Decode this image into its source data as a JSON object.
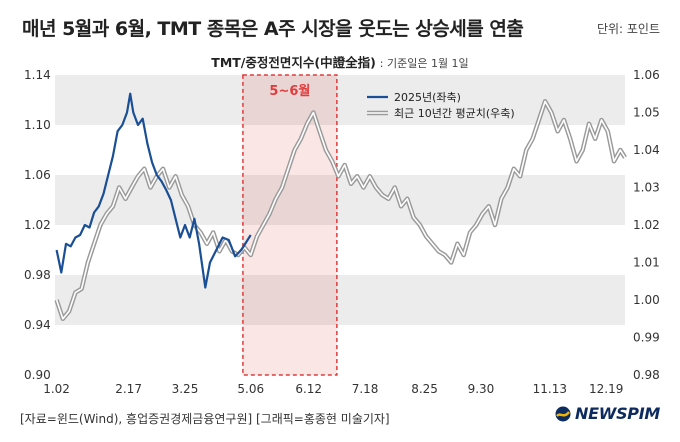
{
  "header": {
    "title": "매년 5월과 6월, TMT 종목은 A주 시장을 웃도는 상승세를 연출",
    "unit": "단위: 포인트"
  },
  "footer": {
    "source": "[자료=윈드(Wind), 흥업증권경제금융연구원] [그래픽=홍종현 미술기자]",
    "logo": "NEWSPIM"
  },
  "chart_data": {
    "type": "line",
    "title": "TMT/중정전면지수(中證全指)",
    "subtitle": ": 기준일은 1월 1일",
    "highlight": {
      "label": "5~6월",
      "from": "5.01",
      "to": "6.30"
    },
    "x_ticks": [
      "1.02",
      "2.17",
      "3.25",
      "5.06",
      "6.12",
      "7.18",
      "8.25",
      "9.30",
      "11.13",
      "12.19"
    ],
    "y_left": {
      "ticks": [
        "0.90",
        "0.94",
        "0.98",
        "1.02",
        "1.06",
        "1.10",
        "1.14"
      ],
      "range": [
        0.9,
        1.14
      ]
    },
    "y_right": {
      "ticks": [
        "0.98",
        "0.99",
        "1.00",
        "1.01",
        "1.02",
        "1.03",
        "1.04",
        "1.05",
        "1.06"
      ],
      "range": [
        0.98,
        1.06
      ]
    },
    "colors": {
      "series_2025": "#1a4f96",
      "series_10y": "#9a9a9a",
      "highlight": "#e23b3b",
      "band": "#ececec"
    },
    "series": [
      {
        "name": "2025년(좌축)",
        "axis": "left",
        "points": [
          [
            "1.02",
            1.0
          ],
          [
            "1.05",
            0.982
          ],
          [
            "1.08",
            1.005
          ],
          [
            "1.11",
            1.003
          ],
          [
            "1.14",
            1.01
          ],
          [
            "1.17",
            1.012
          ],
          [
            "1.20",
            1.02
          ],
          [
            "1.23",
            1.018
          ],
          [
            "1.26",
            1.03
          ],
          [
            "1.29",
            1.035
          ],
          [
            "2.01",
            1.045
          ],
          [
            "2.04",
            1.06
          ],
          [
            "2.07",
            1.075
          ],
          [
            "2.10",
            1.095
          ],
          [
            "2.13",
            1.1
          ],
          [
            "2.16",
            1.11
          ],
          [
            "2.18",
            1.125
          ],
          [
            "2.20",
            1.11
          ],
          [
            "2.23",
            1.1
          ],
          [
            "2.26",
            1.105
          ],
          [
            "3.01",
            1.085
          ],
          [
            "3.04",
            1.07
          ],
          [
            "3.07",
            1.06
          ],
          [
            "3.10",
            1.055
          ],
          [
            "3.13",
            1.048
          ],
          [
            "3.16",
            1.04
          ],
          [
            "3.19",
            1.025
          ],
          [
            "3.22",
            1.01
          ],
          [
            "3.25",
            1.02
          ],
          [
            "3.28",
            1.01
          ],
          [
            "3.31",
            1.025
          ],
          [
            "4.03",
            1.005
          ],
          [
            "4.07",
            0.97
          ],
          [
            "4.10",
            0.99
          ],
          [
            "4.14",
            1.0
          ],
          [
            "4.18",
            1.01
          ],
          [
            "4.22",
            1.008
          ],
          [
            "4.26",
            0.995
          ],
          [
            "4.30",
            1.0
          ],
          [
            "5.06",
            1.012
          ]
        ]
      },
      {
        "name": "최근 10년간 평균치(우축)",
        "axis": "right",
        "points": [
          [
            "1.02",
            1.0
          ],
          [
            "1.06",
            0.995
          ],
          [
            "1.10",
            0.997
          ],
          [
            "1.14",
            1.002
          ],
          [
            "1.18",
            1.003
          ],
          [
            "1.22",
            1.01
          ],
          [
            "1.26",
            1.015
          ],
          [
            "1.30",
            1.02
          ],
          [
            "2.03",
            1.023
          ],
          [
            "2.07",
            1.025
          ],
          [
            "2.11",
            1.03
          ],
          [
            "2.15",
            1.027
          ],
          [
            "2.19",
            1.03
          ],
          [
            "2.23",
            1.033
          ],
          [
            "2.27",
            1.035
          ],
          [
            "3.03",
            1.03
          ],
          [
            "3.07",
            1.033
          ],
          [
            "3.11",
            1.035
          ],
          [
            "3.15",
            1.03
          ],
          [
            "3.19",
            1.033
          ],
          [
            "3.23",
            1.028
          ],
          [
            "3.27",
            1.025
          ],
          [
            "3.31",
            1.02
          ],
          [
            "4.04",
            1.018
          ],
          [
            "4.08",
            1.015
          ],
          [
            "4.12",
            1.018
          ],
          [
            "4.16",
            1.013
          ],
          [
            "4.20",
            1.016
          ],
          [
            "4.24",
            1.013
          ],
          [
            "4.28",
            1.012
          ],
          [
            "5.02",
            1.014
          ],
          [
            "5.06",
            1.012
          ],
          [
            "5.10",
            1.017
          ],
          [
            "5.14",
            1.02
          ],
          [
            "5.18",
            1.023
          ],
          [
            "5.22",
            1.027
          ],
          [
            "5.26",
            1.03
          ],
          [
            "5.30",
            1.035
          ],
          [
            "6.03",
            1.04
          ],
          [
            "6.07",
            1.043
          ],
          [
            "6.11",
            1.047
          ],
          [
            "6.15",
            1.05
          ],
          [
            "6.19",
            1.045
          ],
          [
            "6.23",
            1.04
          ],
          [
            "6.27",
            1.037
          ],
          [
            "7.01",
            1.033
          ],
          [
            "7.05",
            1.036
          ],
          [
            "7.09",
            1.031
          ],
          [
            "7.13",
            1.033
          ],
          [
            "7.17",
            1.03
          ],
          [
            "7.21",
            1.033
          ],
          [
            "7.25",
            1.03
          ],
          [
            "7.29",
            1.028
          ],
          [
            "8.02",
            1.027
          ],
          [
            "8.06",
            1.03
          ],
          [
            "8.10",
            1.025
          ],
          [
            "8.14",
            1.027
          ],
          [
            "8.18",
            1.022
          ],
          [
            "8.22",
            1.02
          ],
          [
            "8.26",
            1.017
          ],
          [
            "8.30",
            1.015
          ],
          [
            "9.03",
            1.013
          ],
          [
            "9.07",
            1.012
          ],
          [
            "9.11",
            1.01
          ],
          [
            "9.15",
            1.015
          ],
          [
            "9.19",
            1.012
          ],
          [
            "9.23",
            1.018
          ],
          [
            "9.27",
            1.02
          ],
          [
            "10.01",
            1.023
          ],
          [
            "10.05",
            1.025
          ],
          [
            "10.09",
            1.02
          ],
          [
            "10.13",
            1.027
          ],
          [
            "10.17",
            1.03
          ],
          [
            "10.21",
            1.035
          ],
          [
            "10.25",
            1.033
          ],
          [
            "10.29",
            1.04
          ],
          [
            "11.02",
            1.043
          ],
          [
            "11.06",
            1.048
          ],
          [
            "11.10",
            1.053
          ],
          [
            "11.14",
            1.05
          ],
          [
            "11.18",
            1.045
          ],
          [
            "11.22",
            1.048
          ],
          [
            "11.26",
            1.043
          ],
          [
            "11.30",
            1.037
          ],
          [
            "12.04",
            1.04
          ],
          [
            "12.08",
            1.047
          ],
          [
            "12.12",
            1.043
          ],
          [
            "12.16",
            1.048
          ],
          [
            "12.20",
            1.045
          ],
          [
            "12.24",
            1.037
          ],
          [
            "12.28",
            1.04
          ],
          [
            "12.31",
            1.038
          ]
        ]
      }
    ]
  }
}
